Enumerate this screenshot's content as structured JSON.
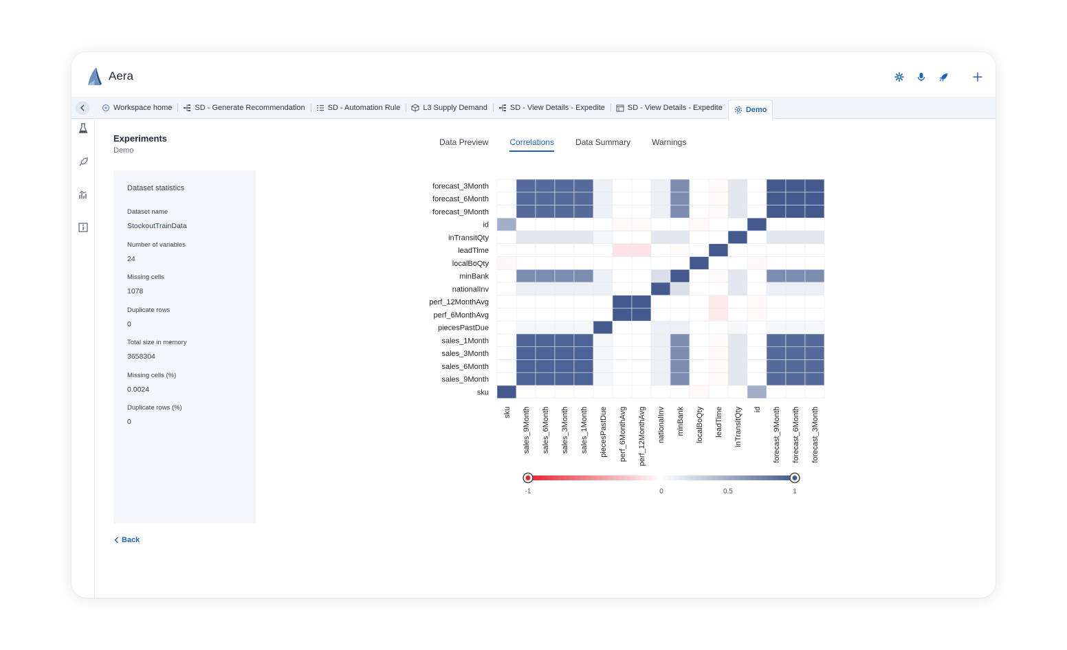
{
  "app": {
    "title": "Aera"
  },
  "top_icons": [
    "gear-icon",
    "microphone-icon",
    "rocket-icon",
    "plus-icon"
  ],
  "tabs": [
    {
      "label": "Workspace home",
      "icon": "workspace-icon",
      "active": false
    },
    {
      "label": "SD - Generate Recommendation",
      "icon": "flow-icon",
      "active": false
    },
    {
      "label": "SD - Automation Rule",
      "icon": "rule-list-icon",
      "active": false
    },
    {
      "label": "L3 Supply Demand",
      "icon": "cube-icon",
      "active": false
    },
    {
      "label": "SD - View Details - Expedite",
      "icon": "flow-icon",
      "active": false
    },
    {
      "label": "SD - View Details - Expedite",
      "icon": "calendar-icon",
      "active": false
    },
    {
      "label": "Demo",
      "icon": "gear-icon",
      "active": true
    }
  ],
  "rail": [
    "flask-icon",
    "rocket-icon",
    "chart-icon",
    "info-icon"
  ],
  "page": {
    "title": "Experiments",
    "subtitle": "Demo"
  },
  "stats": {
    "title": "Dataset statistics",
    "items": [
      {
        "label": "Dataset name",
        "value": "StockoutTrainData"
      },
      {
        "label": "Number of variables",
        "value": "24"
      },
      {
        "label": "Missing cells",
        "value": "1078"
      },
      {
        "label": "Duplicate rows",
        "value": "0"
      },
      {
        "label": "Total size in memory",
        "value": "3658304"
      },
      {
        "label": "Missing cells (%)",
        "value": "0.0024"
      },
      {
        "label": "Duplicate rows (%)",
        "value": "0"
      }
    ]
  },
  "back_label": "Back",
  "content_tabs": [
    {
      "label": "Data Preview",
      "active": false
    },
    {
      "label": "Correlations",
      "active": true
    },
    {
      "label": "Data Summary",
      "active": false
    },
    {
      "label": "Warnings",
      "active": false
    }
  ],
  "chart_data": {
    "type": "heatmap",
    "rows": [
      "forecast_3Month",
      "forecast_6Month",
      "forecast_9Month",
      "id",
      "inTransitQty",
      "leadTime",
      "localBoQty",
      "minBank",
      "nationalInv",
      "perf_12MonthAvg",
      "perf_6MonthAvg",
      "piecesPastDue",
      "sales_1Month",
      "sales_3Month",
      "sales_6Month",
      "sales_9Month",
      "sku"
    ],
    "columns": [
      "sku",
      "sales_9Month",
      "sales_6Month",
      "sales_3Month",
      "sales_1Month",
      "piecesPastDue",
      "perf_6MonthAvg",
      "perf_12MonthAvg",
      "nationalInv",
      "minBank",
      "localBoQty",
      "leadTime",
      "inTransitQty",
      "id",
      "forecast_9Month",
      "forecast_6Month",
      "forecast_3Month"
    ],
    "values": [
      [
        0,
        0.9,
        0.9,
        0.9,
        0.9,
        0.1,
        0,
        0,
        0.1,
        0.7,
        0,
        -0.02,
        0.15,
        0,
        1,
        1,
        1
      ],
      [
        0,
        0.9,
        0.9,
        0.9,
        0.9,
        0.1,
        0,
        0,
        0.1,
        0.7,
        0,
        -0.02,
        0.15,
        0,
        1,
        1,
        1
      ],
      [
        0,
        0.9,
        0.9,
        0.9,
        0.9,
        0.1,
        0,
        0,
        0.1,
        0.7,
        0,
        -0.02,
        0.15,
        0,
        1,
        1,
        1
      ],
      [
        0.5,
        0,
        0,
        0,
        0,
        0,
        -0.03,
        -0.03,
        0,
        0,
        -0.03,
        0,
        0,
        1,
        0,
        0,
        0
      ],
      [
        0,
        0.15,
        0.15,
        0.15,
        0.15,
        0.05,
        0,
        0,
        0.15,
        0.15,
        0,
        0,
        1,
        0,
        0.15,
        0.15,
        0.15
      ],
      [
        0,
        0,
        0,
        0,
        0,
        0,
        -0.12,
        -0.12,
        0,
        -0.02,
        0,
        1,
        0,
        0,
        0,
        0,
        0
      ],
      [
        -0.03,
        0,
        0,
        0,
        0,
        0,
        0,
        0,
        0,
        0,
        1,
        0,
        0,
        -0.03,
        0,
        0,
        0
      ],
      [
        0,
        0.7,
        0.7,
        0.7,
        0.7,
        0.1,
        0,
        0,
        0.2,
        1,
        0,
        -0.02,
        0.15,
        0,
        0.7,
        0.7,
        0.7
      ],
      [
        0,
        0.1,
        0.1,
        0.1,
        0.1,
        0.1,
        0,
        0,
        1,
        0.2,
        0,
        0,
        0.15,
        0,
        0.1,
        0.1,
        0.1
      ],
      [
        0,
        0,
        0,
        0,
        0,
        0,
        1,
        1,
        0,
        0,
        0,
        -0.1,
        0,
        -0.03,
        0,
        0,
        0
      ],
      [
        0,
        0,
        0,
        0,
        0,
        0,
        1,
        1,
        0,
        0,
        0,
        -0.1,
        0,
        -0.03,
        0,
        0,
        0
      ],
      [
        0,
        0.05,
        0.05,
        0.05,
        0.05,
        1,
        0,
        0,
        0.1,
        0.1,
        0,
        0,
        0.05,
        0,
        0.05,
        0.05,
        0.05
      ],
      [
        0,
        0.95,
        0.95,
        0.95,
        0.95,
        0.05,
        0,
        0,
        0.1,
        0.7,
        0,
        -0.02,
        0.15,
        0,
        0.9,
        0.9,
        0.9
      ],
      [
        0,
        0.95,
        0.95,
        0.95,
        0.95,
        0.05,
        0,
        0,
        0.1,
        0.7,
        0,
        -0.02,
        0.15,
        0,
        0.9,
        0.9,
        0.9
      ],
      [
        0,
        0.95,
        0.95,
        0.95,
        0.95,
        0.05,
        0,
        0,
        0.1,
        0.7,
        0,
        -0.02,
        0.15,
        0,
        0.9,
        0.9,
        0.9
      ],
      [
        0,
        0.95,
        0.95,
        0.95,
        0.95,
        0.05,
        0,
        0,
        0.1,
        0.7,
        0,
        -0.02,
        0.15,
        0,
        0.9,
        0.9,
        0.9
      ],
      [
        1,
        0,
        0,
        0,
        0,
        0,
        0,
        0,
        0,
        0,
        -0.03,
        0,
        0,
        0.5,
        0,
        0,
        0
      ]
    ],
    "range": [
      -1,
      1
    ],
    "colorbar_ticks": [
      "-1",
      "0",
      "0.5",
      "1"
    ],
    "colorbar_tick_values": [
      -1,
      0,
      0.5,
      1
    ],
    "colors": {
      "negative": "#e8222e",
      "zero": "#ffffff",
      "positive": "#445a8f"
    }
  }
}
